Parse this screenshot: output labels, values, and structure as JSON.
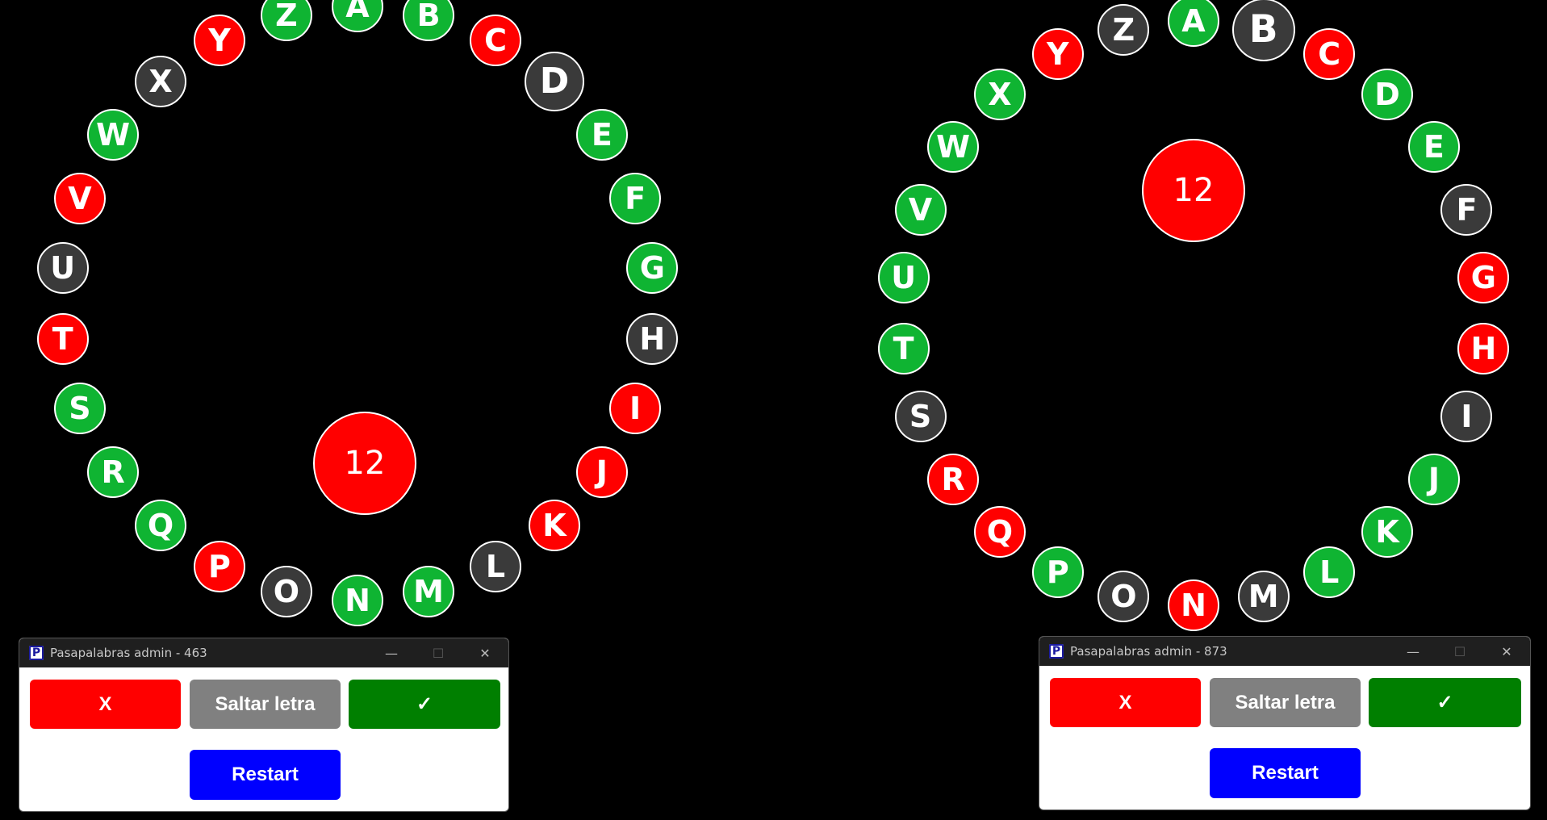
{
  "colors": {
    "correct": "#0fb432",
    "wrong": "#ff0000",
    "pending": "#3a3a3a",
    "btn_wrong": "#ff0000",
    "btn_skip": "#808080",
    "btn_correct": "#007f00",
    "btn_restart": "#0000ff"
  },
  "boards": [
    {
      "counter": "12",
      "letters": [
        {
          "l": "A",
          "s": "correct"
        },
        {
          "l": "B",
          "s": "correct"
        },
        {
          "l": "C",
          "s": "wrong"
        },
        {
          "l": "D",
          "s": "pending"
        },
        {
          "l": "E",
          "s": "correct"
        },
        {
          "l": "F",
          "s": "correct"
        },
        {
          "l": "G",
          "s": "correct"
        },
        {
          "l": "H",
          "s": "pending"
        },
        {
          "l": "I",
          "s": "wrong"
        },
        {
          "l": "J",
          "s": "wrong"
        },
        {
          "l": "K",
          "s": "wrong"
        },
        {
          "l": "L",
          "s": "pending"
        },
        {
          "l": "M",
          "s": "correct"
        },
        {
          "l": "N",
          "s": "correct"
        },
        {
          "l": "O",
          "s": "pending"
        },
        {
          "l": "P",
          "s": "wrong"
        },
        {
          "l": "Q",
          "s": "correct"
        },
        {
          "l": "R",
          "s": "correct"
        },
        {
          "l": "S",
          "s": "correct"
        },
        {
          "l": "T",
          "s": "wrong"
        },
        {
          "l": "U",
          "s": "pending"
        },
        {
          "l": "V",
          "s": "wrong"
        },
        {
          "l": "W",
          "s": "correct"
        },
        {
          "l": "X",
          "s": "pending"
        },
        {
          "l": "Y",
          "s": "wrong"
        },
        {
          "l": "Z",
          "s": "correct"
        }
      ]
    },
    {
      "counter": "12",
      "letters": [
        {
          "l": "A",
          "s": "correct"
        },
        {
          "l": "B",
          "s": "pending"
        },
        {
          "l": "C",
          "s": "wrong"
        },
        {
          "l": "D",
          "s": "correct"
        },
        {
          "l": "E",
          "s": "correct"
        },
        {
          "l": "F",
          "s": "pending"
        },
        {
          "l": "G",
          "s": "wrong"
        },
        {
          "l": "H",
          "s": "wrong"
        },
        {
          "l": "I",
          "s": "pending"
        },
        {
          "l": "J",
          "s": "correct"
        },
        {
          "l": "K",
          "s": "correct"
        },
        {
          "l": "L",
          "s": "correct"
        },
        {
          "l": "M",
          "s": "pending"
        },
        {
          "l": "N",
          "s": "wrong"
        },
        {
          "l": "O",
          "s": "pending"
        },
        {
          "l": "P",
          "s": "correct"
        },
        {
          "l": "Q",
          "s": "wrong"
        },
        {
          "l": "R",
          "s": "wrong"
        },
        {
          "l": "S",
          "s": "pending"
        },
        {
          "l": "T",
          "s": "correct"
        },
        {
          "l": "U",
          "s": "correct"
        },
        {
          "l": "V",
          "s": "correct"
        },
        {
          "l": "W",
          "s": "correct"
        },
        {
          "l": "X",
          "s": "correct"
        },
        {
          "l": "Y",
          "s": "wrong"
        },
        {
          "l": "Z",
          "s": "pending"
        }
      ]
    }
  ],
  "windows": [
    {
      "title": "Pasapalabras admin - 463",
      "app_icon": "P",
      "buttons": {
        "wrong": "X",
        "skip": "Saltar letra",
        "correct": "✓",
        "restart": "Restart"
      }
    },
    {
      "title": "Pasapalabras admin - 873",
      "app_icon": "P",
      "buttons": {
        "wrong": "X",
        "skip": "Saltar letra",
        "correct": "✓",
        "restart": "Restart"
      }
    }
  ],
  "window_controls": {
    "minimize": "—",
    "maximize": "☐",
    "close": "✕"
  }
}
